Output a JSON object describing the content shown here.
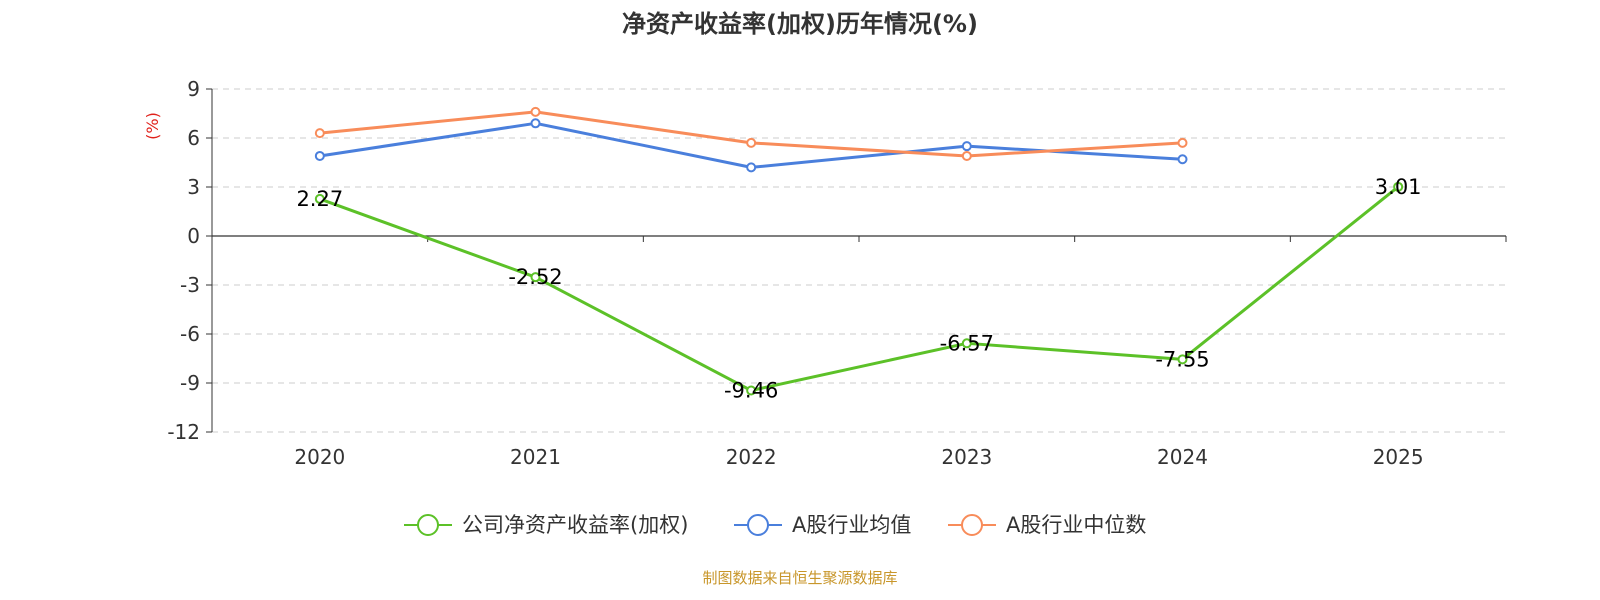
{
  "chart_data": {
    "type": "line",
    "title": "净资产收益率(加权)历年情况(%)",
    "y_unit_label": "(%)",
    "categories": [
      "2020",
      "2021",
      "2022",
      "2023",
      "2024",
      "2025"
    ],
    "ylim": [
      -12,
      9
    ],
    "y_ticks": [
      9,
      6,
      3,
      0,
      -3,
      -6,
      -9,
      -12
    ],
    "grid": true,
    "legend_position": "bottom",
    "series": [
      {
        "name": "公司净资产收益率(加权)",
        "color": "#5cc128",
        "values": [
          2.27,
          -2.52,
          -9.46,
          -6.57,
          -7.55,
          3.01
        ],
        "labels": [
          "2.27",
          "-2.52",
          "-9.46",
          "-6.57",
          "-7.55",
          "3.01"
        ]
      },
      {
        "name": "A股行业均值",
        "color": "#4a7fdc",
        "values": [
          4.9,
          6.9,
          4.2,
          5.5,
          4.7,
          null
        ]
      },
      {
        "name": "A股行业中位数",
        "color": "#f88c5a",
        "values": [
          6.3,
          7.6,
          5.7,
          4.9,
          5.7,
          null
        ]
      }
    ]
  },
  "source": "制图数据来自恒生聚源数据库",
  "colors": {
    "unit_label": "#e0211b",
    "source": "#c8962a",
    "axis": "#333333",
    "grid": "#cccccc"
  }
}
